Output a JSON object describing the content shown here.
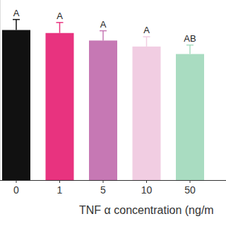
{
  "chart_data": {
    "type": "bar",
    "x_label": "TNF α concentration (ng/m",
    "categories": [
      "0",
      "1",
      "5",
      "10",
      "50"
    ],
    "values": [
      100,
      98,
      93,
      89,
      84
    ],
    "errors": [
      7,
      7,
      6.5,
      6.5,
      6
    ],
    "annotations": [
      "A",
      "A",
      "A",
      "A",
      "AB"
    ],
    "colors": [
      "#111111",
      "#e8337f",
      "#c678b4",
      "#f1cde2",
      "#a9dcc1"
    ],
    "ylim": [
      0,
      120
    ],
    "tick_labels": "x",
    "grid": false
  }
}
